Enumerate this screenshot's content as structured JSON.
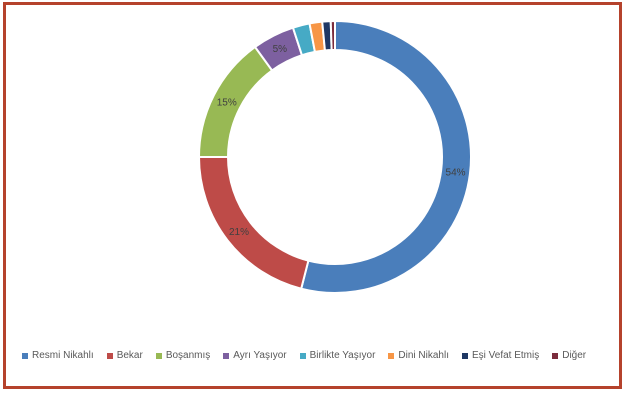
{
  "chart_data": {
    "type": "pie",
    "variant": "donut",
    "categories": [
      "Resmi Nikahlı",
      "Bekar",
      "Boşanmış",
      "Ayrı Yaşıyor",
      "Birlikte Yaşıyor",
      "Dini Nikahlı",
      "Eşi Vefat Etmiş",
      "Diğer"
    ],
    "values": [
      54,
      21,
      15,
      5,
      2,
      1.5,
      1,
      0.5
    ],
    "data_labels": [
      "54%",
      "21%",
      "15%",
      "5%",
      "",
      "",
      "",
      ""
    ],
    "colors": [
      "#4a7ebb",
      "#be4b48",
      "#98b954",
      "#7d60a0",
      "#46aac5",
      "#f79646",
      "#1f3864",
      "#7b2c3c"
    ],
    "title": "",
    "legend_position": "bottom"
  }
}
